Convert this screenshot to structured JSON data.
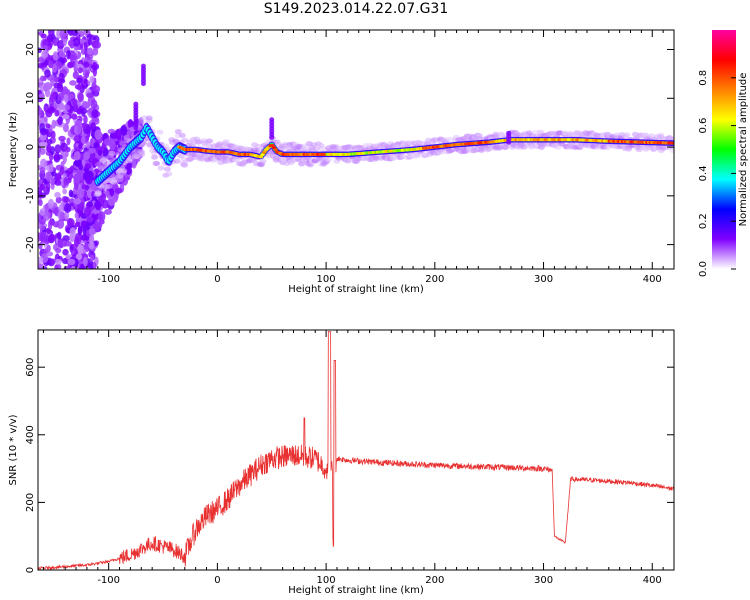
{
  "title": "S149.2023.014.22.07.G31",
  "chart_data": [
    {
      "type": "heatmap",
      "xlabel": "Height of straight line (km)",
      "ylabel": "Frequency (Hz)",
      "xlim": [
        -165,
        420
      ],
      "ylim": [
        -25,
        24
      ],
      "xticks": [
        -100,
        0,
        100,
        200,
        300,
        400
      ],
      "yticks": [
        -20,
        -10,
        0,
        10,
        20
      ],
      "colorbar": {
        "label": "Normalized spectral amplitude",
        "range": [
          0,
          1
        ],
        "ticks": [
          0.0,
          0.2,
          0.4,
          0.6,
          0.8
        ],
        "colormap": [
          "#ffffff",
          "#8000ff",
          "#0000ff",
          "#00ffff",
          "#00ff00",
          "#ffff00",
          "#ff8000",
          "#ff0000",
          "#ff00a0"
        ]
      },
      "ridge": {
        "x": [
          -110,
          -100,
          -90,
          -80,
          -70,
          -65,
          -60,
          -55,
          -50,
          -45,
          -40,
          -35,
          -30,
          -20,
          -10,
          0,
          10,
          20,
          30,
          40,
          45,
          50,
          55,
          60,
          70,
          80,
          100,
          120,
          150,
          180,
          200,
          220,
          250,
          270,
          300,
          330,
          360,
          390,
          420
        ],
        "y": [
          -7,
          -5,
          -3,
          0,
          2,
          4,
          2,
          0,
          -1,
          -3,
          -1,
          0,
          -0.5,
          -0.5,
          -0.8,
          -1,
          -1,
          -1.5,
          -1.5,
          -2,
          -0.5,
          0.5,
          -1,
          -1.5,
          -1.5,
          -1.5,
          -1.5,
          -1.5,
          -1,
          -0.5,
          0,
          0.5,
          1,
          1.5,
          1.5,
          1.5,
          1.2,
          1.0,
          0.8
        ]
      }
    },
    {
      "type": "line",
      "xlabel": "Height of straight line (km)",
      "ylabel": "SNR (10 * v/v)",
      "xlim": [
        -165,
        420
      ],
      "ylim": [
        0,
        710
      ],
      "xticks": [
        -100,
        0,
        100,
        200,
        300,
        400
      ],
      "yticks": [
        0,
        200,
        400,
        600
      ],
      "color": "#e83030",
      "series": [
        {
          "x": [
            -165,
            -140,
            -120,
            -100,
            -80,
            -60,
            -40,
            -30,
            -20,
            -10,
            0,
            10,
            20,
            30,
            40,
            50,
            60,
            70,
            80,
            90,
            100,
            105,
            110,
            120,
            150,
            200,
            250,
            300,
            308,
            310,
            320,
            325,
            330,
            350,
            380,
            400,
            420
          ],
          "y": [
            5,
            10,
            15,
            25,
            45,
            80,
            60,
            40,
            120,
            160,
            180,
            210,
            250,
            280,
            310,
            330,
            335,
            340,
            335,
            330,
            300,
            290,
            330,
            325,
            318,
            310,
            305,
            300,
            295,
            100,
            80,
            270,
            268,
            265,
            258,
            250,
            240
          ]
        }
      ]
    }
  ]
}
